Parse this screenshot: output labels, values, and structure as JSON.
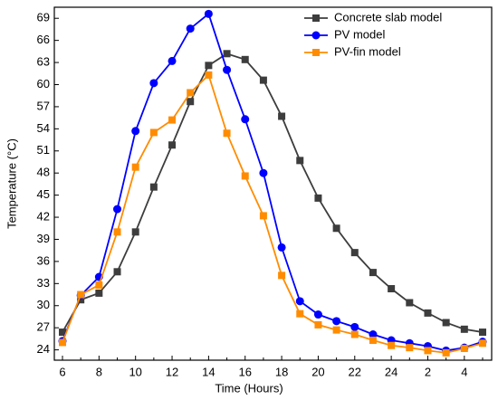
{
  "chart_data": {
    "type": "line",
    "xlabel": "Time (Hours)",
    "ylabel": "Temperature (°C)",
    "categories": [
      "6",
      null,
      "8",
      null,
      "10",
      null,
      "12",
      null,
      "14",
      null,
      "16",
      null,
      "18",
      null,
      "20",
      null,
      "22",
      null,
      "24",
      null,
      "2",
      null,
      "4",
      null
    ],
    "series": [
      {
        "name": "Concrete slab model",
        "color": "#3d3d3d",
        "marker": "square",
        "values": [
          26.4,
          30.8,
          31.7,
          34.6,
          40.0,
          46.1,
          51.8,
          57.7,
          62.6,
          64.2,
          63.4,
          60.6,
          55.7,
          49.7,
          44.6,
          40.5,
          37.2,
          34.5,
          32.3,
          30.4,
          29.0,
          27.7,
          26.8,
          26.4
        ]
      },
      {
        "name": "PV model",
        "color": "#0000ff",
        "marker": "circle",
        "values": [
          25.2,
          31.4,
          33.9,
          43.1,
          53.7,
          60.2,
          63.2,
          67.6,
          69.6,
          62.0,
          55.3,
          48.0,
          37.9,
          30.6,
          28.8,
          27.9,
          27.1,
          26.1,
          25.3,
          24.9,
          24.5,
          23.9,
          24.3,
          25.1
        ]
      },
      {
        "name": "PV-fin model",
        "color": "#ff8c00",
        "marker": "square",
        "values": [
          25.0,
          31.5,
          32.8,
          40.0,
          48.8,
          53.5,
          55.2,
          58.9,
          61.3,
          53.4,
          47.6,
          42.2,
          34.1,
          28.9,
          27.4,
          26.7,
          26.1,
          25.3,
          24.6,
          24.3,
          23.9,
          23.6,
          24.2,
          24.9
        ]
      }
    ],
    "ylim": [
      22.6,
      70.5
    ],
    "yticks": [
      24,
      27,
      30,
      33,
      36,
      39,
      42,
      45,
      48,
      51,
      54,
      57,
      60,
      63,
      66,
      69
    ],
    "legend": "upper right"
  }
}
